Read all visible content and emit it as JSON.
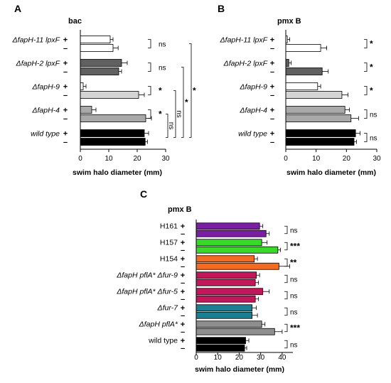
{
  "figure": {
    "letters": [
      "A",
      "B",
      "C"
    ]
  },
  "colors": {
    "white": "#ffffff",
    "dark_gray": "#606060",
    "light_gray": "#d4d4d4",
    "mid_gray": "#a9a9a9",
    "black": "#000000",
    "purple": "#7b1fa2",
    "green": "#39d82b",
    "orange": "#f36b21",
    "magenta": "#c2185b",
    "teal": "#1a7f93",
    "gray": "#8e8e8e"
  },
  "chart_data": [
    {
      "id": "A",
      "type": "bar",
      "orientation": "horizontal",
      "title": "bac",
      "xlabel": "swim halo diameter (mm)",
      "xlim": [
        0,
        30
      ],
      "xticks": [
        0,
        10,
        20,
        30
      ],
      "signs": [
        "+",
        "–"
      ],
      "categories": [
        "ΔfapH-11 lpxF",
        "ΔfapH-2 lpxF",
        "ΔfapH-9",
        "ΔfapH-4",
        "wild type"
      ],
      "values": [
        [
          10.5,
          11.5
        ],
        [
          14.5,
          13.5
        ],
        [
          1.0,
          20.5
        ],
        [
          4.0,
          23.0
        ],
        [
          22.5,
          22.8
        ]
      ],
      "errors": [
        [
          1.0,
          1.8
        ],
        [
          2.0,
          1.0
        ],
        [
          1.0,
          2.0
        ],
        [
          1.5,
          2.0
        ],
        [
          1.5,
          0.8
        ]
      ],
      "bar_colors": [
        [
          "white",
          "white"
        ],
        [
          "dark_gray",
          "dark_gray"
        ],
        [
          "white",
          "light_gray"
        ],
        [
          "mid_gray",
          "mid_gray"
        ],
        [
          "black",
          "black"
        ]
      ],
      "pair_significance": [
        "ns",
        "ns",
        "*",
        "*",
        ""
      ],
      "extra_significance": [
        {
          "label": "ns",
          "from": 4,
          "to": 3
        },
        {
          "label": "ns",
          "from": 4,
          "to": 2
        },
        {
          "label": "*",
          "from": 4,
          "to": 1
        },
        {
          "label": "*",
          "from": 4,
          "to": 0
        }
      ]
    },
    {
      "id": "B",
      "type": "bar",
      "orientation": "horizontal",
      "title": "pmx B",
      "xlabel": "swim halo diameter (mm)",
      "xlim": [
        0,
        30
      ],
      "xticks": [
        0,
        10,
        20,
        30
      ],
      "signs": [
        "+",
        "–"
      ],
      "categories": [
        "ΔfapH-11 lpxF",
        "ΔfapH-2 lpxF",
        "ΔfapH-9",
        "ΔfapH-4",
        "wild type"
      ],
      "values": [
        [
          0.5,
          11.5
        ],
        [
          1.0,
          12.0
        ],
        [
          10.5,
          18.5
        ],
        [
          19.5,
          21.5
        ],
        [
          23.0,
          22.5
        ]
      ],
      "errors": [
        [
          0.8,
          2.0
        ],
        [
          0.8,
          2.0
        ],
        [
          1.0,
          2.0
        ],
        [
          1.5,
          2.5
        ],
        [
          1.5,
          0.8
        ]
      ],
      "bar_colors": [
        [
          "white",
          "white"
        ],
        [
          "dark_gray",
          "dark_gray"
        ],
        [
          "white",
          "light_gray"
        ],
        [
          "mid_gray",
          "mid_gray"
        ],
        [
          "black",
          "black"
        ]
      ],
      "pair_significance": [
        "*",
        "*",
        "*",
        "ns",
        "ns"
      ]
    },
    {
      "id": "C",
      "type": "bar",
      "orientation": "horizontal",
      "title": "pmx B",
      "xlabel": "swim halo diameter (mm)",
      "xlim": [
        0,
        45
      ],
      "xticks": [
        0,
        10,
        20,
        30,
        40
      ],
      "signs": [
        "+",
        "–"
      ],
      "categories": [
        "H161",
        "H157",
        "H154",
        "ΔfapH pflA* Δfur-9",
        "ΔfapH pflA* Δfur-5",
        "Δfur-7",
        "ΔfapH pflA*",
        "wild type"
      ],
      "italic": [
        false,
        false,
        false,
        true,
        true,
        true,
        true,
        false
      ],
      "values": [
        [
          29.5,
          32.5
        ],
        [
          30.5,
          38.0
        ],
        [
          27.0,
          38.5
        ],
        [
          28.0,
          27.5
        ],
        [
          31.0,
          27.5
        ],
        [
          26.0,
          26.0
        ],
        [
          30.5,
          36.5
        ],
        [
          23.0,
          22.5
        ]
      ],
      "errors": [
        [
          1.5,
          1.5
        ],
        [
          2.5,
          1.2
        ],
        [
          1.5,
          5.0
        ],
        [
          1.5,
          1.5
        ],
        [
          3.0,
          1.5
        ],
        [
          2.0,
          2.5
        ],
        [
          1.5,
          3.5
        ],
        [
          1.5,
          1.0
        ]
      ],
      "bar_colors": [
        [
          "purple",
          "purple"
        ],
        [
          "green",
          "green"
        ],
        [
          "orange",
          "orange"
        ],
        [
          "magenta",
          "magenta"
        ],
        [
          "magenta",
          "magenta"
        ],
        [
          "teal",
          "teal"
        ],
        [
          "gray",
          "gray"
        ],
        [
          "black",
          "black"
        ]
      ],
      "pair_significance": [
        "ns",
        "***",
        "**",
        "ns",
        "ns",
        "ns",
        "***",
        "ns"
      ]
    }
  ]
}
